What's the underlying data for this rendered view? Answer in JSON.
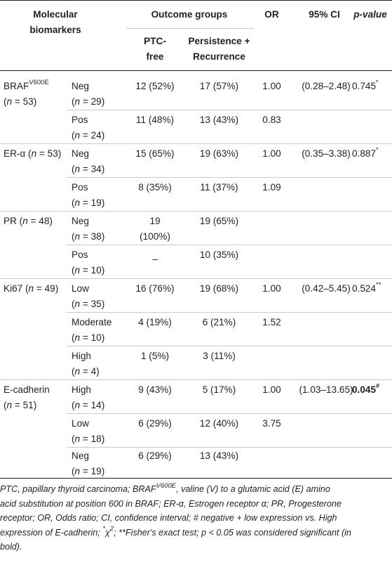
{
  "header": {
    "biomarkers_line1": "Molecular",
    "biomarkers_line2": "biomarkers",
    "outcome_groups": "Outcome groups",
    "ptc_free_line1": "PTC-",
    "ptc_free_line2": "free",
    "persistence_line1": "Persistence +",
    "persistence_line2": "Recurrence",
    "or": "OR",
    "ci": "95% CI",
    "pvalue": "p-value"
  },
  "groups": [
    {
      "name": "BRAF",
      "name_sup": "V600E",
      "name_rest": "",
      "n_label": "(n = 53)",
      "rows": [
        {
          "level": "Neg",
          "n": "(n = 29)",
          "ptc_free": "12 (52%)",
          "persistence": "17 (57%)",
          "or": "1.00",
          "ci": "(0.28–2.48)",
          "p": "0.745",
          "p_sup": "*"
        },
        {
          "level": "Pos",
          "n": "(n = 24)",
          "ptc_free": "11 (48%)",
          "persistence": "13 (43%)",
          "or": "0.83",
          "ci": "",
          "p": "",
          "p_sup": ""
        }
      ]
    },
    {
      "name": "ER-α",
      "name_sup": "",
      "name_rest": " (n = 53)",
      "n_label": "",
      "rows": [
        {
          "level": "Neg",
          "n": "(n = 34)",
          "ptc_free": "15 (65%)",
          "persistence": "19 (63%)",
          "or": "1.00",
          "ci": "(0.35–3.38)",
          "p": "0.887",
          "p_sup": "*"
        },
        {
          "level": "Pos",
          "n": "(n = 19)",
          "ptc_free": "8 (35%)",
          "persistence": "11 (37%)",
          "or": "1.09",
          "ci": "",
          "p": "",
          "p_sup": ""
        }
      ]
    },
    {
      "name": "PR",
      "name_sup": "",
      "name_rest": " (n = 48)",
      "n_label": "",
      "rows": [
        {
          "level": "Neg",
          "n": "(n = 38)",
          "ptc_free": "19",
          "ptc_free_line2": "(100%)",
          "persistence": "19 (65%)",
          "or": "",
          "ci": "",
          "p": "",
          "p_sup": ""
        },
        {
          "level": "Pos",
          "n": "(n = 10)",
          "ptc_free": "_",
          "persistence": "10 (35%)",
          "or": "",
          "ci": "",
          "p": "",
          "p_sup": ""
        }
      ]
    },
    {
      "name": "Ki67",
      "name_sup": "",
      "name_rest": " (n = 49)",
      "n_label": "",
      "rows": [
        {
          "level": "Low",
          "n": "(n = 35)",
          "ptc_free": "16 (76%)",
          "persistence": "19 (68%)",
          "or": "1.00",
          "ci": "(0.42–5.45)",
          "p": "0.524",
          "p_sup": "**"
        },
        {
          "level": "Moderate",
          "n": "(n = 10)",
          "ptc_free": "4 (19%)",
          "persistence": "6 (21%)",
          "or": "1.52",
          "ci": "",
          "p": "",
          "p_sup": ""
        },
        {
          "level": "High",
          "n": "(n = 4)",
          "ptc_free": "1 (5%)",
          "persistence": "3 (11%)",
          "or": "",
          "ci": "",
          "p": "",
          "p_sup": ""
        }
      ]
    },
    {
      "name": "E-cadherin",
      "name_sup": "",
      "name_rest": "",
      "n_label": "(n = 51)",
      "rows": [
        {
          "level": "High",
          "n": "(n = 14)",
          "ptc_free": "9 (43%)",
          "persistence": "5 (17%)",
          "or": "1.00",
          "ci": "(1.03–13.65)",
          "p": "0.045",
          "p_sup": "#"
        },
        {
          "level": "Low",
          "n": "(n = 18)",
          "ptc_free": "6 (29%)",
          "persistence": "12 (40%)",
          "or": "3.75",
          "ci": "",
          "p": "",
          "p_sup": ""
        },
        {
          "level": "Neg",
          "n": "(n = 19)",
          "ptc_free": "6 (29%)",
          "persistence": "13 (43%)",
          "or": "",
          "ci": "",
          "p": "",
          "p_sup": ""
        }
      ]
    }
  ],
  "footnote": {
    "l1a": "PTC, papillary thyroid carcinoma; BRAF",
    "l1sup": "V600E",
    "l1b": ", valine (V) to a glutamic acid (E) amino",
    "l2": "acid substitution at position 600 in BRAF; ER-α, Estrogen receptor α; PR, Progesterone",
    "l3": "receptor; OR, Odds ratio; CI, confidence interval; # negative + low expression vs. High",
    "l4a": "expression of E-cadherin; ",
    "l4sup": "*",
    "l4chi": "χ",
    "l4chisup": "2",
    "l4b": "; **Fisher's exact test; p < 0.05 was considered significant (in",
    "l5": "bold)."
  }
}
